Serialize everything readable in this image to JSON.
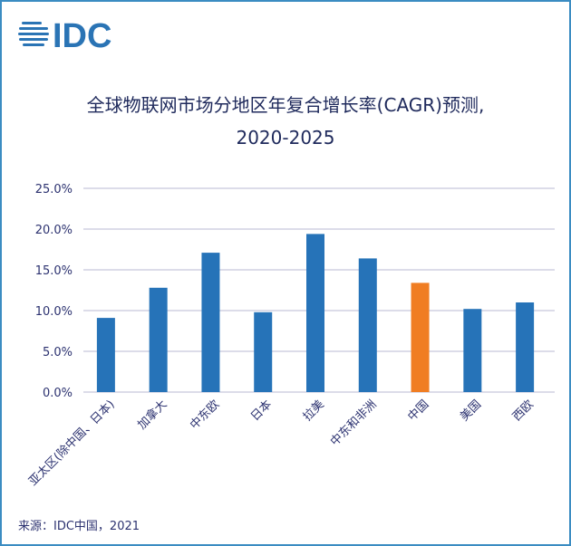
{
  "logo_text": "IDC",
  "colors": {
    "bar": "#2673b8",
    "highlight": "#f07d22",
    "grid": "#c8c8dc",
    "text": "#2c3270",
    "logo": "#2a74b5"
  },
  "chart_data": {
    "type": "bar",
    "title": "全球物联网市场分地区年复合增长率(CAGR)预测,",
    "subtitle": "2020-2025",
    "categories": [
      "亚太区(除中国、日本)",
      "加拿大",
      "中东欧",
      "日本",
      "拉美",
      "中东和非洲",
      "中国",
      "美国",
      "西欧"
    ],
    "values": [
      9.1,
      12.8,
      17.1,
      9.8,
      19.4,
      16.4,
      13.4,
      10.2,
      11.0
    ],
    "highlight_category": "中国",
    "ylim": [
      0,
      25
    ],
    "yticks": [
      "0.0%",
      "5.0%",
      "10.0%",
      "15.0%",
      "20.0%",
      "25.0%"
    ],
    "grid": true,
    "xlabel": "",
    "ylabel": ""
  },
  "source": "来源：IDC中国，2021"
}
